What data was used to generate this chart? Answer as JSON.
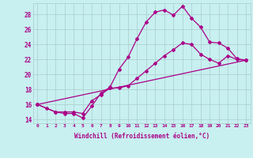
{
  "xlabel": "Windchill (Refroidissement éolien,°C)",
  "bg_color": "#c8f0f0",
  "line_color": "#aa0088",
  "grid_color": "#aacccc",
  "xlim": [
    -0.5,
    23.5
  ],
  "ylim": [
    13.5,
    29.5
  ],
  "yticks": [
    14,
    16,
    18,
    20,
    22,
    24,
    26,
    28
  ],
  "xticks": [
    0,
    1,
    2,
    3,
    4,
    5,
    6,
    7,
    8,
    9,
    10,
    11,
    12,
    13,
    14,
    15,
    16,
    17,
    18,
    19,
    20,
    21,
    22,
    23
  ],
  "line1_x": [
    0,
    1,
    2,
    3,
    4,
    5,
    6,
    7,
    8,
    9,
    10,
    11,
    12,
    13,
    14,
    15,
    16,
    17,
    18,
    19,
    20,
    21,
    22,
    23
  ],
  "line1_y": [
    16.0,
    15.5,
    15.0,
    14.8,
    14.8,
    14.2,
    15.8,
    17.5,
    18.3,
    20.7,
    22.3,
    24.8,
    27.0,
    28.3,
    28.6,
    27.9,
    29.1,
    27.5,
    26.3,
    24.3,
    24.2,
    23.5,
    22.1,
    21.9
  ],
  "line2_x": [
    0,
    2,
    3,
    4,
    5,
    6,
    7,
    8,
    9,
    10,
    11,
    12,
    13,
    14,
    15,
    16,
    17,
    18,
    19,
    20,
    21,
    22,
    23
  ],
  "line2_y": [
    16.0,
    15.0,
    15.0,
    15.0,
    14.8,
    16.5,
    17.3,
    18.2,
    18.2,
    18.5,
    19.5,
    20.5,
    21.5,
    22.5,
    23.3,
    24.2,
    24.0,
    22.7,
    22.0,
    21.5,
    22.5,
    22.0,
    21.9
  ],
  "line3_x": [
    0,
    23
  ],
  "line3_y": [
    16.0,
    21.9
  ]
}
